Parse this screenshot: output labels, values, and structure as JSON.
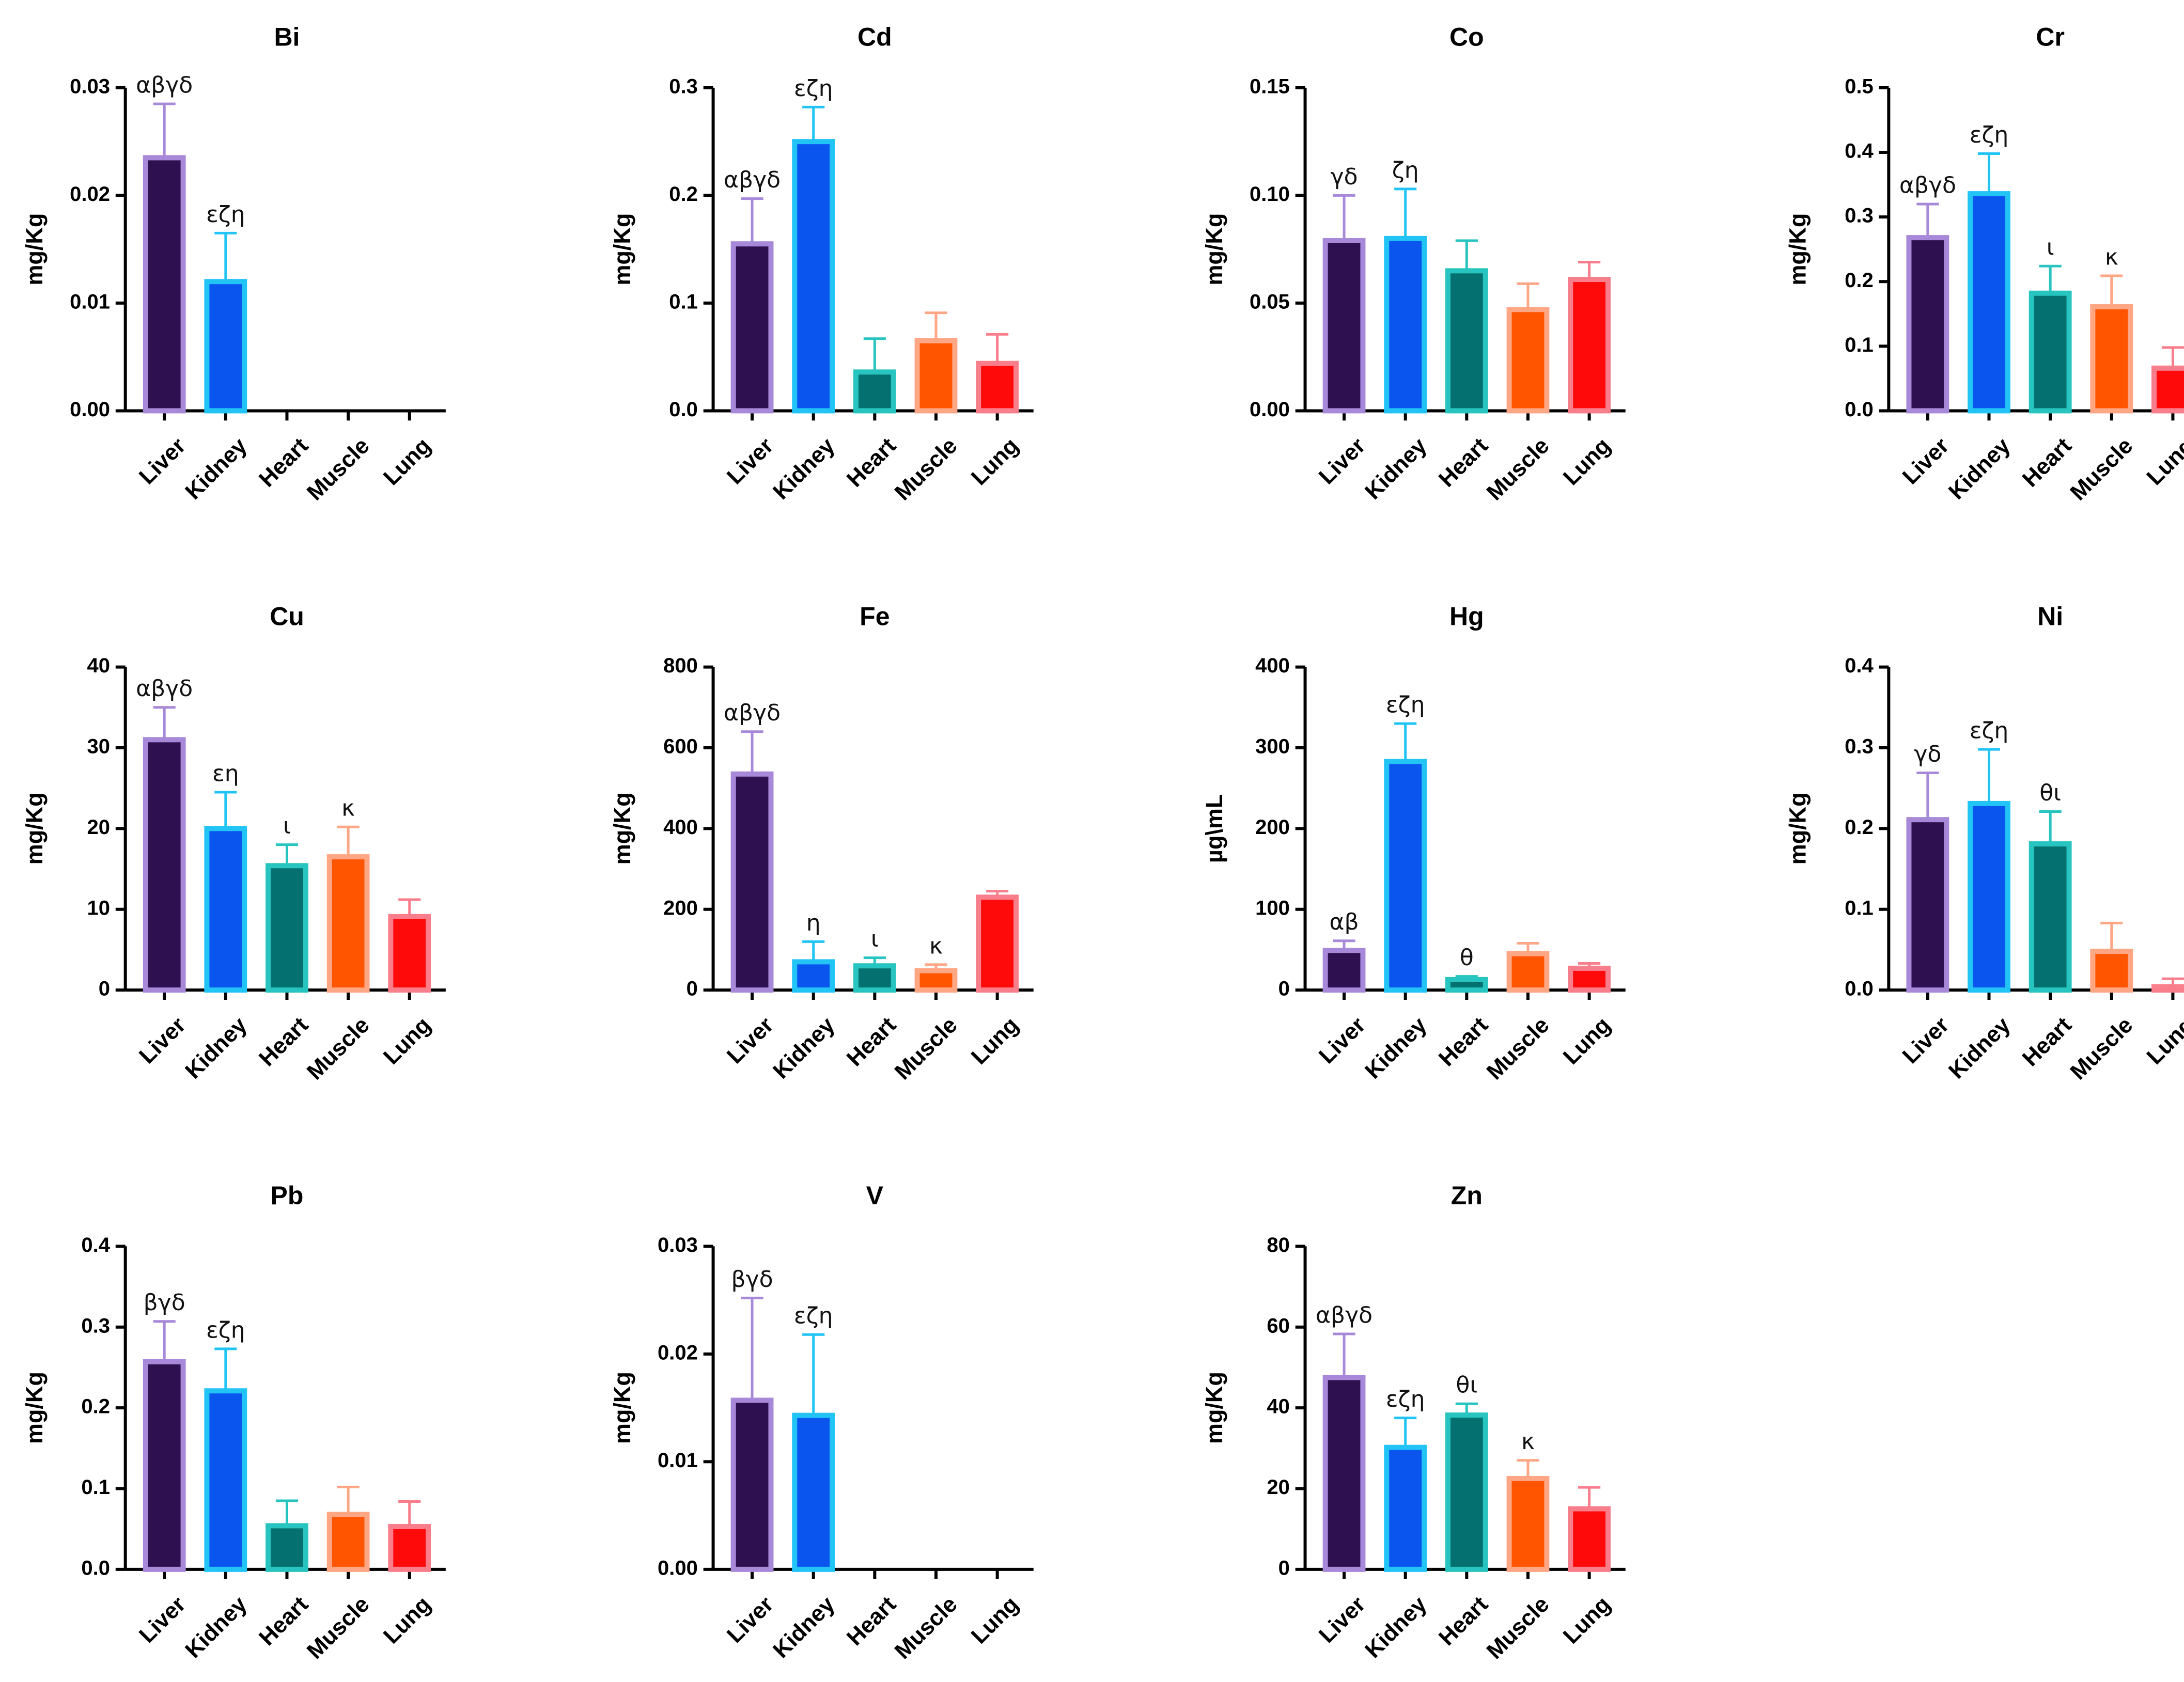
{
  "organ_colors": {
    "Liver": {
      "fill": "#2e1050",
      "stroke": "#a888d8"
    },
    "Kidney": {
      "fill": "#0a55ee",
      "stroke": "#22c4f6"
    },
    "Heart": {
      "fill": "#047070",
      "stroke": "#28c4c0"
    },
    "Muscle": {
      "fill": "#ff5500",
      "stroke": "#ffa684"
    },
    "Lung": {
      "fill": "#fe0a0a",
      "stroke": "#f87e8c"
    }
  },
  "chart_data": [
    {
      "type": "bar",
      "title": "Bi",
      "ylabel": "mg/Kg",
      "ylim": [
        0,
        0.03
      ],
      "ticks": [
        "0.00",
        "0.01",
        "0.02",
        "0.03"
      ],
      "categories": [
        "Liver",
        "Kidney",
        "Heart",
        "Muscle",
        "Lung"
      ],
      "values": [
        0.0235,
        0.012,
        0,
        0,
        0
      ],
      "errors": [
        0.005,
        0.0045,
        0,
        0,
        0
      ],
      "annotations": [
        "αβγδ",
        "εζη",
        "",
        "",
        ""
      ]
    },
    {
      "type": "bar",
      "title": "Cd",
      "ylabel": "mg/Kg",
      "ylim": [
        0,
        0.3
      ],
      "ticks": [
        "0.0",
        "0.1",
        "0.2",
        "0.3"
      ],
      "categories": [
        "Liver",
        "Kidney",
        "Heart",
        "Muscle",
        "Lung"
      ],
      "values": [
        0.155,
        0.25,
        0.036,
        0.065,
        0.044
      ],
      "errors": [
        0.042,
        0.032,
        0.031,
        0.026,
        0.027
      ],
      "annotations": [
        "αβγδ",
        "εζη",
        "",
        "",
        ""
      ]
    },
    {
      "type": "bar",
      "title": "Co",
      "ylabel": "mg/Kg",
      "ylim": [
        0,
        0.15
      ],
      "ticks": [
        "0.00",
        "0.05",
        "0.10",
        "0.15"
      ],
      "categories": [
        "Liver",
        "Kidney",
        "Heart",
        "Muscle",
        "Lung"
      ],
      "values": [
        0.079,
        0.08,
        0.065,
        0.047,
        0.061
      ],
      "errors": [
        0.021,
        0.023,
        0.014,
        0.012,
        0.008
      ],
      "annotations": [
        "γδ",
        "ζη",
        "",
        "",
        ""
      ]
    },
    {
      "type": "bar",
      "title": "Cr",
      "ylabel": "mg/Kg",
      "ylim": [
        0,
        0.5
      ],
      "ticks": [
        "0.0",
        "0.1",
        "0.2",
        "0.3",
        "0.4",
        "0.5"
      ],
      "categories": [
        "Liver",
        "Kidney",
        "Heart",
        "Muscle",
        "Lung"
      ],
      "values": [
        0.268,
        0.336,
        0.182,
        0.161,
        0.066
      ],
      "errors": [
        0.052,
        0.062,
        0.042,
        0.048,
        0.032
      ],
      "annotations": [
        "αβγδ",
        "εζη",
        "ι",
        "κ",
        ""
      ]
    },
    {
      "type": "bar",
      "title": "Cu",
      "ylabel": "mg/Kg",
      "ylim": [
        0,
        40
      ],
      "ticks": [
        "0",
        "10",
        "20",
        "30",
        "40"
      ],
      "categories": [
        "Liver",
        "Kidney",
        "Heart",
        "Muscle",
        "Lung"
      ],
      "values": [
        31,
        20,
        15.4,
        16.5,
        9.1
      ],
      "errors": [
        4,
        4.5,
        2.6,
        3.7,
        2.1
      ],
      "annotations": [
        "αβγδ",
        "εη",
        "ι",
        "κ",
        ""
      ]
    },
    {
      "type": "bar",
      "title": "Fe",
      "ylabel": "mg/Kg",
      "ylim": [
        0,
        800
      ],
      "ticks": [
        "0",
        "200",
        "400",
        "600",
        "800"
      ],
      "categories": [
        "Liver",
        "Kidney",
        "Heart",
        "Muscle",
        "Lung"
      ],
      "values": [
        535,
        70,
        60,
        48,
        230
      ],
      "errors": [
        105,
        50,
        20,
        15,
        15
      ],
      "annotations": [
        "αβγδ",
        "η",
        "ι",
        "κ",
        ""
      ]
    },
    {
      "type": "bar",
      "title": "Hg",
      "ylabel": "µg\\mL",
      "ylim": [
        0,
        400
      ],
      "ticks": [
        "0",
        "100",
        "200",
        "300",
        "400"
      ],
      "categories": [
        "Liver",
        "Kidney",
        "Heart",
        "Muscle",
        "Lung"
      ],
      "values": [
        49,
        283,
        13,
        45,
        27
      ],
      "errors": [
        12,
        47,
        4,
        13,
        6
      ],
      "annotations": [
        "αβ",
        "εζη",
        "θ",
        "",
        ""
      ]
    },
    {
      "type": "bar",
      "title": "Ni",
      "ylabel": "mg/Kg",
      "ylim": [
        0,
        0.4
      ],
      "ticks": [
        "0.0",
        "0.1",
        "0.2",
        "0.3",
        "0.4"
      ],
      "categories": [
        "Liver",
        "Kidney",
        "Heart",
        "Muscle",
        "Lung"
      ],
      "values": [
        0.211,
        0.231,
        0.181,
        0.048,
        0.004
      ],
      "errors": [
        0.058,
        0.067,
        0.04,
        0.035,
        0.01
      ],
      "annotations": [
        "γδ",
        "εζη",
        "θι",
        "",
        ""
      ]
    },
    {
      "type": "bar",
      "title": "Pb",
      "ylabel": "mg/Kg",
      "ylim": [
        0,
        0.4
      ],
      "ticks": [
        "0.0",
        "0.1",
        "0.2",
        "0.3",
        "0.4"
      ],
      "categories": [
        "Liver",
        "Kidney",
        "Heart",
        "Muscle",
        "Lung"
      ],
      "values": [
        0.257,
        0.221,
        0.054,
        0.068,
        0.053
      ],
      "errors": [
        0.05,
        0.052,
        0.031,
        0.034,
        0.031
      ],
      "annotations": [
        "βγδ",
        "εζη",
        "",
        "",
        ""
      ]
    },
    {
      "type": "bar",
      "title": "V",
      "ylabel": "mg/Kg",
      "ylim": [
        0,
        0.03
      ],
      "ticks": [
        "0.00",
        "0.01",
        "0.02",
        "0.03"
      ],
      "categories": [
        "Liver",
        "Kidney",
        "Heart",
        "Muscle",
        "Lung"
      ],
      "values": [
        0.0157,
        0.0143,
        0,
        0,
        0
      ],
      "errors": [
        0.0095,
        0.0075,
        0,
        0,
        0
      ],
      "annotations": [
        "βγδ",
        "εζη",
        "",
        "",
        ""
      ]
    },
    {
      "type": "bar",
      "title": "Zn",
      "ylabel": "mg/Kg",
      "ylim": [
        0,
        80
      ],
      "ticks": [
        "0",
        "20",
        "40",
        "60",
        "80"
      ],
      "categories": [
        "Liver",
        "Kidney",
        "Heart",
        "Muscle",
        "Lung"
      ],
      "values": [
        47.5,
        30.2,
        38.2,
        22.5,
        15
      ],
      "errors": [
        10.8,
        7.3,
        2.8,
        4.5,
        5.3
      ],
      "annotations": [
        "αβγδ",
        "εζη",
        "θι",
        "κ",
        ""
      ]
    }
  ]
}
